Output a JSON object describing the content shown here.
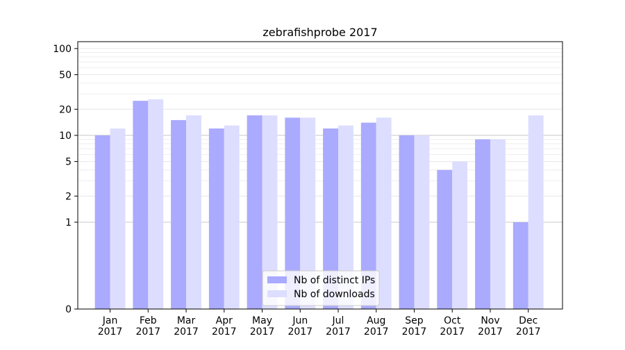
{
  "chart_data": {
    "type": "bar",
    "title": "zebrafishprobe 2017",
    "xlabel": "",
    "ylabel": "",
    "y_scale": "symlog",
    "ylim": [
      0,
      120
    ],
    "y_ticks": [
      {
        "value": 0,
        "label": "0"
      },
      {
        "value": 1,
        "label": "1"
      },
      {
        "value": 2,
        "label": "2"
      },
      {
        "value": 5,
        "label": "5"
      },
      {
        "value": 10,
        "label": "10"
      },
      {
        "value": 20,
        "label": "20"
      },
      {
        "value": 50,
        "label": "50"
      },
      {
        "value": 100,
        "label": "100"
      }
    ],
    "categories": [
      [
        "Jan",
        "2017"
      ],
      [
        "Feb",
        "2017"
      ],
      [
        "Mar",
        "2017"
      ],
      [
        "Apr",
        "2017"
      ],
      [
        "May",
        "2017"
      ],
      [
        "Jun",
        "2017"
      ],
      [
        "Jul",
        "2017"
      ],
      [
        "Aug",
        "2017"
      ],
      [
        "Sep",
        "2017"
      ],
      [
        "Oct",
        "2017"
      ],
      [
        "Nov",
        "2017"
      ],
      [
        "Dec",
        "2017"
      ]
    ],
    "series": [
      {
        "name": "Nb of distinct IPs",
        "color": "#aaaaff",
        "values": [
          10,
          25,
          15,
          12,
          17,
          16,
          12,
          14,
          10,
          4,
          9,
          1
        ]
      },
      {
        "name": "Nb of downloads",
        "color": "#ddddff",
        "values": [
          12,
          26,
          17,
          13,
          17,
          16,
          13,
          16,
          10,
          5,
          9,
          17
        ]
      }
    ],
    "grid": true,
    "legend_position": "bottom-center"
  }
}
